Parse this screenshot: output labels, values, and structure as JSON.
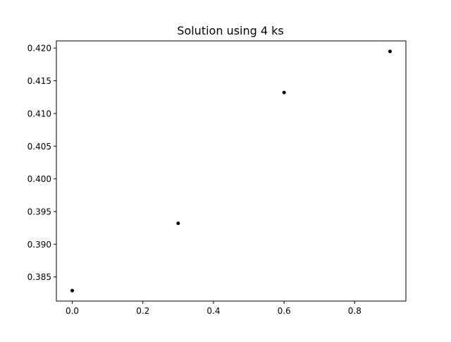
{
  "chart_data": {
    "type": "scatter",
    "title": "Solution using 4 ks",
    "xlabel": "",
    "ylabel": "",
    "xlim": [
      -0.045,
      0.945
    ],
    "ylim": [
      0.3813,
      0.4211
    ],
    "x_ticks": [
      0.0,
      0.2,
      0.4,
      0.6,
      0.8
    ],
    "x_tick_labels": [
      "0.0",
      "0.2",
      "0.4",
      "0.6",
      "0.8"
    ],
    "y_ticks": [
      0.385,
      0.39,
      0.395,
      0.4,
      0.405,
      0.41,
      0.415,
      0.42
    ],
    "y_tick_labels": [
      "0.385",
      "0.390",
      "0.395",
      "0.400",
      "0.405",
      "0.410",
      "0.415",
      "0.420"
    ],
    "grid": false,
    "legend": "none",
    "marker_color": "#000000",
    "series": [
      {
        "x": [
          0.0,
          0.3,
          0.6,
          0.9
        ],
        "y": [
          0.3829,
          0.3932,
          0.4132,
          0.4195
        ]
      }
    ]
  }
}
